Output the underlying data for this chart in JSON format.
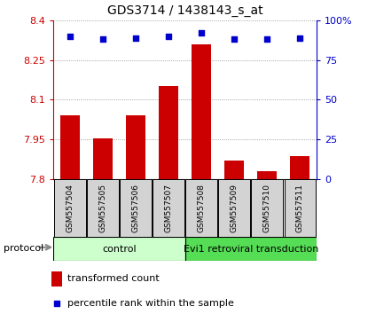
{
  "title": "GDS3714 / 1438143_s_at",
  "samples": [
    "GSM557504",
    "GSM557505",
    "GSM557506",
    "GSM557507",
    "GSM557508",
    "GSM557509",
    "GSM557510",
    "GSM557511"
  ],
  "transformed_counts": [
    8.04,
    7.955,
    8.04,
    8.15,
    8.31,
    7.87,
    7.83,
    7.885
  ],
  "percentile_ranks": [
    90,
    88,
    89,
    90,
    92,
    88,
    88,
    89
  ],
  "ylim_left": [
    7.8,
    8.4
  ],
  "yticks_left": [
    7.8,
    7.95,
    8.1,
    8.25,
    8.4
  ],
  "ytick_labels_left": [
    "7.8",
    "7.95",
    "8.1",
    "8.25",
    "8.4"
  ],
  "ylim_right": [
    0,
    100
  ],
  "yticks_right": [
    0,
    25,
    50,
    75,
    100
  ],
  "ytick_labels_right": [
    "0",
    "25",
    "50",
    "75",
    "100%"
  ],
  "bar_color": "#cc0000",
  "dot_color": "#0000cc",
  "control_samples": 4,
  "group_labels": [
    "control",
    "Evi1 retroviral transduction"
  ],
  "group_colors_light": "#ccffcc",
  "group_colors_dark": "#55dd55",
  "protocol_label": "protocol",
  "legend_bar_label": "transformed count",
  "legend_dot_label": "percentile rank within the sample",
  "sample_box_color": "#d3d3d3"
}
